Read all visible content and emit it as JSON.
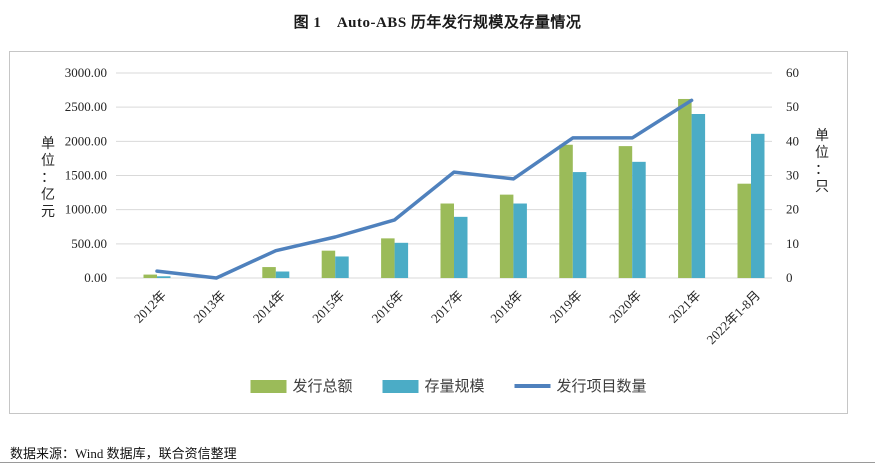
{
  "figure": {
    "title": "图 1　Auto-ABS 历年发行规模及存量情况",
    "source_note": "数据来源：Wind 数据库，联合资信整理"
  },
  "chart_data": {
    "type": "bar+line combo",
    "title": "图 1　Auto-ABS 历年发行规模及存量情况",
    "grid": true,
    "legend_position": "bottom",
    "categories": [
      "2012年",
      "2013年",
      "2014年",
      "2015年",
      "2016年",
      "2017年",
      "2018年",
      "2019年",
      "2020年",
      "2021年",
      "2022年1-8月"
    ],
    "series": [
      {
        "name": "发行总额",
        "type": "bar",
        "yaxis": "left",
        "color": "#9BBB59",
        "values": [
          50,
          0,
          160,
          400,
          580,
          1090,
          1220,
          1950,
          1930,
          2620,
          1380
        ]
      },
      {
        "name": "存量规模",
        "type": "bar",
        "yaxis": "left",
        "color": "#4BACC6",
        "values": [
          25,
          0,
          95,
          315,
          515,
          895,
          1090,
          1550,
          1700,
          2400,
          2110
        ]
      },
      {
        "name": "发行项目数量",
        "type": "line",
        "yaxis": "right",
        "color": "#4F81BD",
        "values": [
          2,
          0,
          8,
          12,
          17,
          31,
          29,
          41,
          41,
          52,
          null
        ]
      }
    ],
    "left_axis": {
      "label": "单位：亿元",
      "min": 0,
      "max": 3000,
      "tick_step": 500,
      "tick_labels": [
        "0.00",
        "500.00",
        "1000.00",
        "1500.00",
        "2000.00",
        "2500.00",
        "3000.00"
      ]
    },
    "right_axis": {
      "label": "单位：只",
      "min": 0,
      "max": 60,
      "tick_step": 10,
      "tick_labels": [
        "0",
        "10",
        "20",
        "30",
        "40",
        "50",
        "60"
      ]
    },
    "legend": [
      {
        "label": "发行总额",
        "swatch": "bar",
        "color": "#9BBB59"
      },
      {
        "label": "存量规模",
        "swatch": "bar",
        "color": "#4BACC6"
      },
      {
        "label": "发行项目数量",
        "swatch": "line",
        "color": "#4F81BD"
      }
    ],
    "gridline_color": "#d9d9d9"
  }
}
